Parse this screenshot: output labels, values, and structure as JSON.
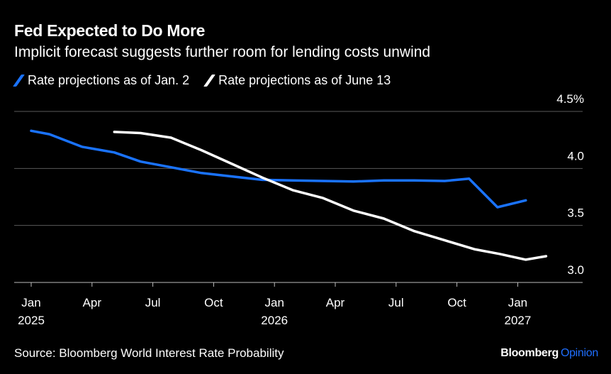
{
  "title": "Fed Expected to Do More",
  "subtitle": "Implicit forecast suggests further room for lending costs unwind",
  "source": "Source: Bloomberg World Interest Rate Probability",
  "brand": {
    "name": "Bloomberg",
    "suffix": "Opinion",
    "suffix_color": "#1f6fff"
  },
  "colors": {
    "background": "#000000",
    "gridline": "#5a5a5a",
    "series_blue": "#1a73ff",
    "series_white": "#ffffff"
  },
  "chart_data": {
    "type": "line",
    "title": "Fed Expected to Do More",
    "subtitle": "Implicit forecast suggests further room for lending costs unwind",
    "xlabel": "",
    "ylabel": "",
    "ylim": [
      3.0,
      4.5
    ],
    "y_ticks": [
      {
        "value": 4.5,
        "label": "4.5%"
      },
      {
        "value": 4.0,
        "label": "4.0"
      },
      {
        "value": 3.5,
        "label": "3.5"
      },
      {
        "value": 3.0,
        "label": "3.0"
      }
    ],
    "x_ticks": [
      {
        "month": 0,
        "label": "Jan",
        "year": "2025"
      },
      {
        "month": 3,
        "label": "Apr",
        "year": ""
      },
      {
        "month": 6,
        "label": "Jul",
        "year": ""
      },
      {
        "month": 9,
        "label": "Oct",
        "year": ""
      },
      {
        "month": 12,
        "label": "Jan",
        "year": "2026"
      },
      {
        "month": 15,
        "label": "Apr",
        "year": ""
      },
      {
        "month": 18,
        "label": "Jul",
        "year": ""
      },
      {
        "month": 21,
        "label": "Oct",
        "year": ""
      },
      {
        "month": 24,
        "label": "Jan",
        "year": "2027"
      }
    ],
    "grid": true,
    "legend_position": "top-left",
    "series": [
      {
        "name": "Rate projections as of Jan. 2",
        "color": "#1a73ff",
        "points": [
          [
            0.0,
            4.33
          ],
          [
            0.9,
            4.3
          ],
          [
            2.5,
            4.19
          ],
          [
            4.1,
            4.14
          ],
          [
            5.4,
            4.06
          ],
          [
            6.9,
            4.01
          ],
          [
            8.4,
            3.96
          ],
          [
            9.9,
            3.93
          ],
          [
            11.4,
            3.9
          ],
          [
            12.9,
            3.895
          ],
          [
            14.4,
            3.89
          ],
          [
            15.9,
            3.885
          ],
          [
            17.4,
            3.895
          ],
          [
            18.9,
            3.895
          ],
          [
            20.4,
            3.89
          ],
          [
            21.6,
            3.91
          ],
          [
            23.0,
            3.66
          ],
          [
            24.4,
            3.72
          ]
        ]
      },
      {
        "name": "Rate projections as of June 13",
        "color": "#ffffff",
        "points": [
          [
            4.1,
            4.32
          ],
          [
            5.4,
            4.31
          ],
          [
            6.9,
            4.27
          ],
          [
            8.4,
            4.16
          ],
          [
            9.9,
            4.04
          ],
          [
            11.4,
            3.92
          ],
          [
            12.9,
            3.81
          ],
          [
            14.4,
            3.74
          ],
          [
            15.9,
            3.63
          ],
          [
            17.4,
            3.56
          ],
          [
            18.9,
            3.45
          ],
          [
            20.4,
            3.37
          ],
          [
            21.9,
            3.29
          ],
          [
            23.1,
            3.25
          ],
          [
            24.4,
            3.2
          ],
          [
            25.4,
            3.23
          ]
        ]
      }
    ]
  }
}
